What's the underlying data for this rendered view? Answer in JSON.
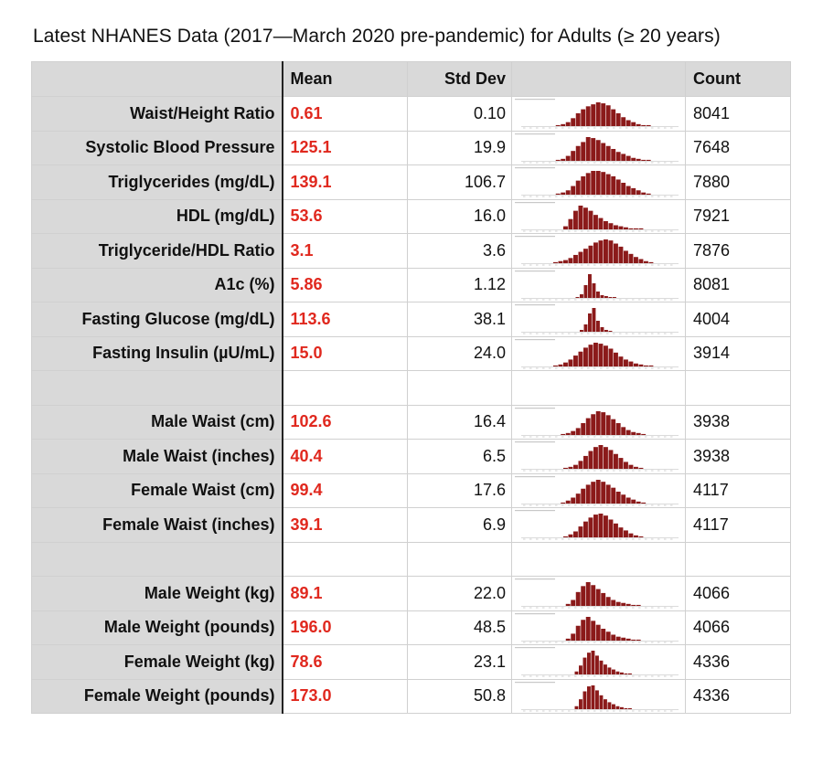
{
  "title": "Latest NHANES Data (2017—March 2020 pre-pandemic) for Adults (≥ 20 years)",
  "headers": {
    "label": "",
    "mean": "Mean",
    "std": "Std Dev",
    "hist": "",
    "count": "Count"
  },
  "bar_color": "#8b1a1a",
  "rows": [
    {
      "label": "Waist/Height Ratio",
      "mean": "0.61",
      "std": "0.10",
      "count": "8041",
      "hist": [
        1,
        2,
        4,
        8,
        13,
        17,
        20,
        22,
        24,
        23,
        21,
        17,
        13,
        9,
        6,
        4,
        2,
        1,
        1
      ]
    },
    {
      "label": "Systolic Blood Pressure",
      "mean": "125.1",
      "std": "19.9",
      "count": "7648",
      "hist": [
        1,
        2,
        5,
        10,
        15,
        19,
        24,
        23,
        21,
        18,
        15,
        12,
        9,
        7,
        5,
        3,
        2,
        1,
        1
      ]
    },
    {
      "label": "Triglycerides (mg/dL)",
      "mean": "139.1",
      "std": "106.7",
      "count": "7880",
      "hist": [
        1,
        2,
        4,
        8,
        13,
        17,
        20,
        22,
        22,
        21,
        19,
        17,
        14,
        11,
        8,
        6,
        4,
        2,
        1
      ]
    },
    {
      "label": "HDL (mg/dL)",
      "mean": "53.6",
      "std": "16.0",
      "count": "7921",
      "hist": [
        3,
        10,
        18,
        23,
        21,
        18,
        14,
        11,
        8,
        6,
        4,
        3,
        2,
        1,
        1,
        1
      ]
    },
    {
      "label": "Triglyceride/HDL Ratio",
      "mean": "3.1",
      "std": "3.6",
      "count": "7876",
      "hist": [
        1,
        2,
        3,
        5,
        8,
        11,
        14,
        17,
        20,
        22,
        23,
        22,
        19,
        16,
        12,
        9,
        6,
        4,
        2,
        1
      ]
    },
    {
      "label": "A1c (%)",
      "mean": "5.86",
      "std": "1.12",
      "count": "8081",
      "hist": [
        1,
        4,
        14,
        26,
        16,
        7,
        3,
        2,
        1,
        1
      ]
    },
    {
      "label": "Fasting Glucose (mg/dL)",
      "mean": "113.6",
      "std": "38.1",
      "count": "4004",
      "hist": [
        2,
        8,
        20,
        26,
        12,
        5,
        2,
        1
      ]
    },
    {
      "label": "Fasting Insulin (µU/mL)",
      "mean": "15.0",
      "std": "24.0",
      "count": "3914",
      "hist": [
        1,
        2,
        4,
        7,
        11,
        15,
        19,
        22,
        24,
        23,
        21,
        18,
        14,
        10,
        7,
        5,
        3,
        2,
        1,
        1
      ]
    },
    {
      "label": "",
      "mean": "",
      "std": "",
      "count": "",
      "hist": []
    },
    {
      "label": "Male Waist (cm)",
      "mean": "102.6",
      "std": "16.4",
      "count": "3938",
      "hist": [
        1,
        2,
        4,
        7,
        12,
        17,
        21,
        24,
        23,
        20,
        16,
        12,
        8,
        5,
        3,
        2,
        1
      ]
    },
    {
      "label": "Male Waist (inches)",
      "mean": "40.4",
      "std": "6.5",
      "count": "3938",
      "hist": [
        1,
        2,
        4,
        8,
        13,
        18,
        22,
        24,
        22,
        19,
        15,
        11,
        7,
        4,
        2,
        1
      ]
    },
    {
      "label": "Female Waist (cm)",
      "mean": "99.4",
      "std": "17.6",
      "count": "4117",
      "hist": [
        1,
        3,
        6,
        10,
        15,
        19,
        22,
        24,
        22,
        19,
        16,
        12,
        9,
        6,
        4,
        2,
        1
      ]
    },
    {
      "label": "Female Waist (inches)",
      "mean": "39.1",
      "std": "6.9",
      "count": "4117",
      "hist": [
        1,
        3,
        6,
        11,
        16,
        20,
        23,
        24,
        22,
        18,
        14,
        10,
        7,
        4,
        2,
        1
      ]
    },
    {
      "label": "",
      "mean": "",
      "std": "",
      "count": "",
      "hist": []
    },
    {
      "label": "Male Weight (kg)",
      "mean": "89.1",
      "std": "22.0",
      "count": "4066",
      "hist": [
        2,
        6,
        14,
        20,
        24,
        21,
        17,
        13,
        9,
        6,
        4,
        3,
        2,
        1,
        1
      ]
    },
    {
      "label": "Male Weight (pounds)",
      "mean": "196.0",
      "std": "48.5",
      "count": "4066",
      "hist": [
        2,
        7,
        15,
        21,
        24,
        20,
        16,
        12,
        9,
        6,
        4,
        3,
        2,
        1,
        1
      ]
    },
    {
      "label": "Female Weight (kg)",
      "mean": "78.6",
      "std": "23.1",
      "count": "4336",
      "hist": [
        3,
        9,
        17,
        22,
        24,
        19,
        14,
        10,
        7,
        5,
        3,
        2,
        1,
        1
      ]
    },
    {
      "label": "Female Weight (pounds)",
      "mean": "173.0",
      "std": "50.8",
      "count": "4336",
      "hist": [
        3,
        10,
        18,
        23,
        24,
        19,
        14,
        10,
        7,
        5,
        3,
        2,
        1,
        1
      ]
    }
  ]
}
